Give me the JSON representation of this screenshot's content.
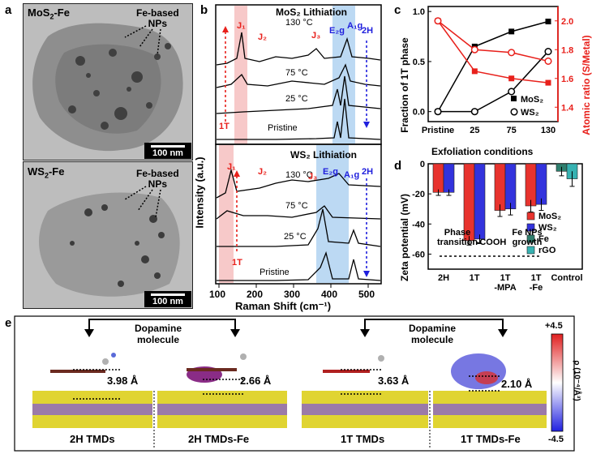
{
  "panel_a": {
    "letter": "a",
    "top": {
      "title_main": "MoS",
      "title_sub": "2",
      "title_tail": "-Fe",
      "label_line1": "Fe-based",
      "label_line2": "NPs",
      "scale": "100 nm"
    },
    "bottom": {
      "title_main": "WS",
      "title_sub": "2",
      "title_tail": "-Fe",
      "label_line1": "Fe-based",
      "label_line2": "NPs",
      "scale": "100 nm"
    }
  },
  "panel_b": {
    "letter": "b",
    "ylabel": "Intensity (a.u.)",
    "xlabel": "Raman Shift (cm⁻¹)",
    "xticks": [
      "100",
      "200",
      "300",
      "400",
      "500"
    ],
    "top": {
      "title": "MoS₂ Lithiation",
      "traces": [
        "130 °C",
        "75 °C",
        "25 °C",
        "Pristine"
      ],
      "peaks": [
        "J₁",
        "J₂",
        "J₃",
        "E₂g",
        "A₁g"
      ],
      "phase_1T": "1T",
      "phase_2H": "2H"
    },
    "bottom": {
      "title": "WS₂ Lithiation",
      "traces": [
        "130 °C",
        "75 °C",
        "25 °C",
        "Pristine"
      ],
      "peaks": [
        "J₁",
        "J₂",
        "J₃",
        "E₂g",
        "A₁g"
      ],
      "phase_1T": "1T",
      "phase_2H": "2H"
    }
  },
  "panel_c": {
    "letter": "c",
    "ylabel_left": "Fraction of 1T phase",
    "ylabel_right": "Atomic ratio (S/Metal)",
    "xlabel": "Exfoliation conditions",
    "legend": [
      "MoS₂",
      "WS₂"
    ],
    "colors": {
      "left": "#000000",
      "right": "#e8201b"
    }
  },
  "panel_d": {
    "letter": "d",
    "ylabel": "Zeta potential (mV)",
    "legend": [
      "MoS₂",
      "WS₂",
      "Fe",
      "rGO"
    ],
    "colors": {
      "MoS2": "#e8332e",
      "WS2": "#3333dd",
      "Fe": "#2f7f6e",
      "rGO": "#37b2b2"
    },
    "annotations": {
      "phase1": "Phase",
      "phase2": "transition",
      "cooh": "-COOH",
      "fe1": "Fe NPs",
      "fe2": "growth"
    }
  },
  "panel_e": {
    "letter": "e",
    "dopamine1": "Dopamine",
    "dopamine2": "molecule",
    "distances": [
      "3.98 Å",
      "2.66 Å",
      "3.63 Å",
      "2.10 Å"
    ],
    "labels": [
      "2H TMDs",
      "2H TMDs-Fe",
      "1T TMDs",
      "1T TMDs-Fe"
    ],
    "scale_max": "+4.5",
    "scale_min": "-4.5",
    "scale_label": "ρ (10⁻⁴/Å³)"
  },
  "chart_data": [
    {
      "type": "line",
      "title": "",
      "xlabel": "Exfoliation conditions",
      "ylabel": "Fraction of 1T phase",
      "ylabel_right": "Atomic ratio (S/Metal)",
      "categories": [
        "Pristine",
        "25",
        "75",
        "130"
      ],
      "ylim": [
        -0.1,
        1.05
      ],
      "ylim_right": [
        1.3,
        2.1
      ],
      "series": [
        {
          "name": "MoS₂",
          "axis": "left",
          "values": [
            0.0,
            0.65,
            0.8,
            0.9
          ]
        },
        {
          "name": "WS₂",
          "axis": "left",
          "values": [
            0.0,
            0.0,
            0.2,
            0.6
          ]
        },
        {
          "name": "MoS₂",
          "axis": "right",
          "values": [
            2.0,
            1.65,
            1.6,
            1.57
          ]
        },
        {
          "name": "WS₂",
          "axis": "right",
          "values": [
            2.0,
            1.8,
            1.78,
            1.72
          ]
        }
      ],
      "yticks": [
        "0.0",
        "0.5",
        "1.0"
      ],
      "yticks_right": [
        "1.4",
        "1.6",
        "1.8",
        "2.0"
      ]
    },
    {
      "type": "bar",
      "title": "",
      "xlabel": "",
      "ylabel": "Zeta potential (mV)",
      "categories": [
        "2H",
        "1T",
        "1T\n-MPA",
        "1T\n-Fe",
        "Control"
      ],
      "ylim": [
        -70,
        0
      ],
      "yticks": [
        "0",
        "-20",
        "-40",
        "-60"
      ],
      "series": [
        {
          "name": "MoS₂",
          "values": [
            -19,
            -51,
            -31,
            -28,
            null
          ]
        },
        {
          "name": "WS₂",
          "values": [
            -19,
            -50,
            -30,
            -27,
            null
          ]
        },
        {
          "name": "Fe",
          "values": [
            null,
            null,
            null,
            null,
            -5
          ]
        },
        {
          "name": "rGO",
          "values": [
            null,
            null,
            null,
            null,
            -10
          ]
        }
      ],
      "errors": {
        "MoS₂": [
          2,
          3,
          4,
          4,
          null
        ],
        "WS₂": [
          2,
          3,
          4,
          4,
          null
        ],
        "Fe": [
          null,
          null,
          null,
          null,
          3
        ],
        "rGO": [
          null,
          null,
          null,
          null,
          5
        ]
      }
    }
  ]
}
